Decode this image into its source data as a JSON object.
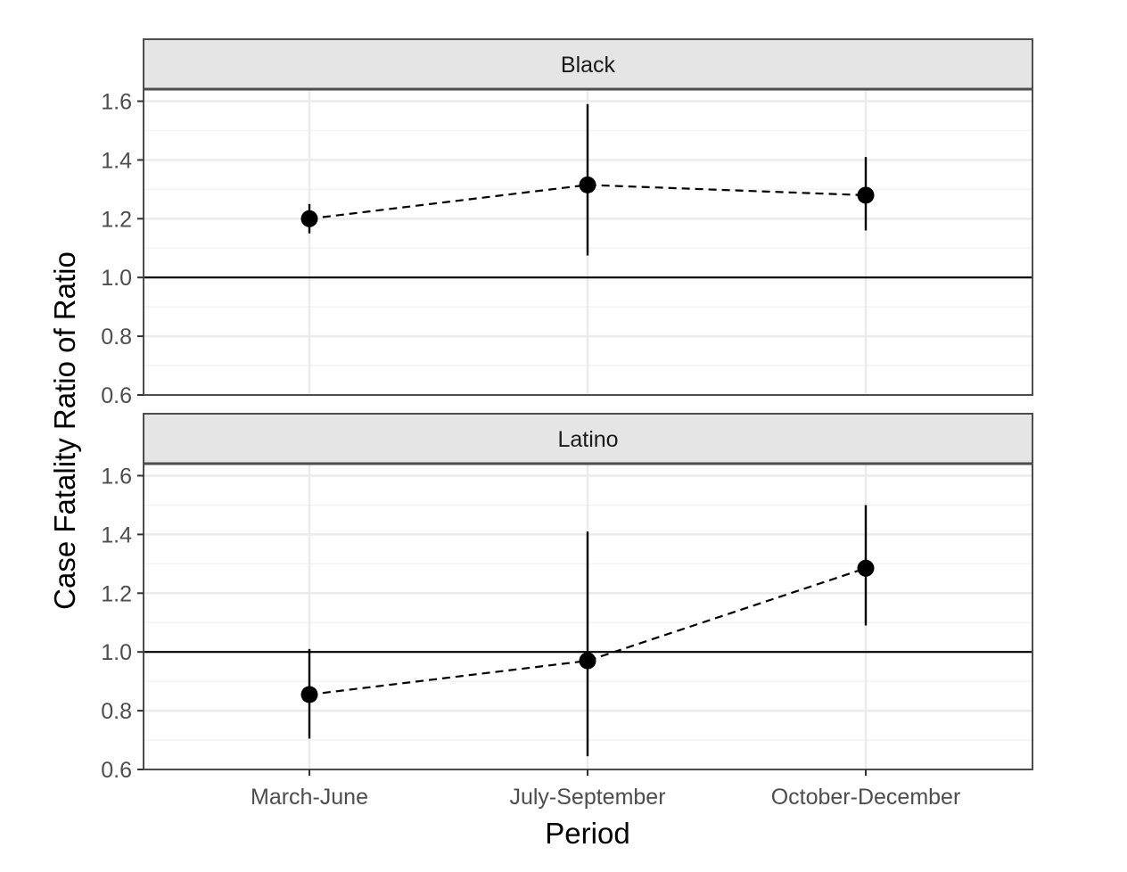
{
  "chart_data": {
    "type": "scatter",
    "subtype": "point-range with dashed connecting line, faceted",
    "categories": [
      "March-June",
      "July-September",
      "October-December"
    ],
    "xlabel": "Period",
    "ylabel": "Case Fatality Ratio of Ratio",
    "ylim": [
      0.6,
      1.65
    ],
    "yticks": [
      0.6,
      0.8,
      1.0,
      1.2,
      1.4,
      1.6
    ],
    "ytick_labels": [
      "0.6",
      "0.8",
      "1.0",
      "1.2",
      "1.4",
      "1.6"
    ],
    "reference_line": 1.0,
    "grid": true,
    "legend": "none",
    "colors": {
      "points": "#000000",
      "strip_fill": "#e5e5e5",
      "panel_border": "#4d4d4d",
      "grid_major": "#ebebeb",
      "grid_minor": "#f3f3f3"
    },
    "facets": [
      {
        "label": "Black",
        "values": [
          1.2,
          1.315,
          1.28
        ],
        "lower": [
          1.15,
          1.075,
          1.16
        ],
        "upper": [
          1.25,
          1.59,
          1.41
        ]
      },
      {
        "label": "Latino",
        "values": [
          0.855,
          0.97,
          1.285
        ],
        "lower": [
          0.705,
          0.645,
          1.09
        ],
        "upper": [
          1.01,
          1.41,
          1.5
        ]
      }
    ]
  }
}
